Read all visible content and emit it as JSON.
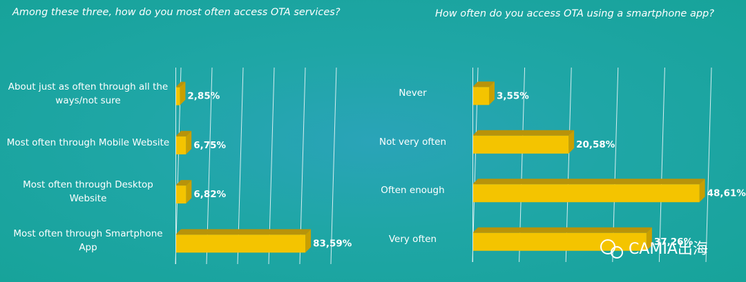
{
  "chart_data": [
    {
      "type": "bar",
      "orientation": "horizontal",
      "title": "Among these three, how do you most often access OTA services?",
      "categories": [
        "About just as often through all the ways/not sure",
        "Most often through Mobile Website",
        "Most often through Desktop Website",
        "Most often through Smartphone App"
      ],
      "values": [
        2.85,
        6.75,
        6.82,
        83.59
      ],
      "value_labels": [
        "2,85%",
        "6,75%",
        "6,82%",
        "83,59%"
      ],
      "color": "#f4c400",
      "xlim": [
        0,
        100
      ],
      "xticks": [
        0,
        20,
        40,
        60,
        80,
        100
      ],
      "grid": true
    },
    {
      "type": "bar",
      "orientation": "horizontal",
      "title": "How often do you access OTA using a smartphone app?",
      "categories": [
        "Never",
        "Not very often",
        "Often enough",
        "Very often"
      ],
      "values": [
        3.55,
        20.58,
        48.61,
        37.26
      ],
      "value_labels": [
        "3,55%",
        "20,58%",
        "48,61%",
        "37,26%"
      ],
      "color": "#f4c400",
      "xlim": [
        0,
        50
      ],
      "xticks": [
        0,
        10,
        20,
        30,
        40,
        50
      ],
      "grid": true
    }
  ],
  "watermark": "CAMIA出海"
}
